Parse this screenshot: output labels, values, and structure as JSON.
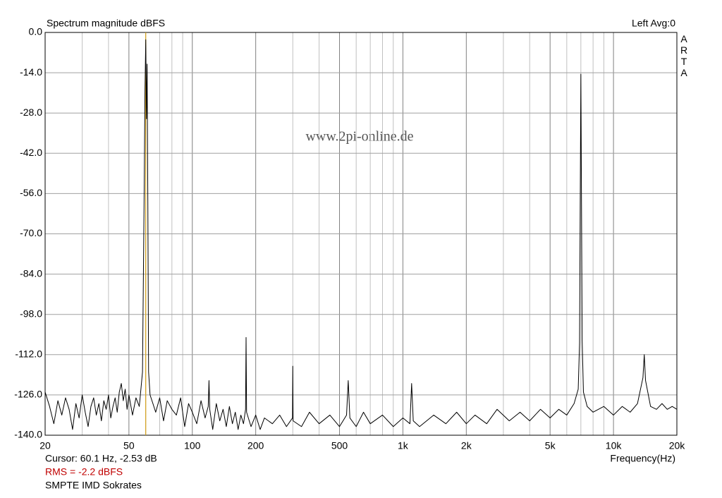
{
  "chart_data": {
    "type": "line",
    "title": "Spectrum magnitude dBFS",
    "channel_label": "Left  Avg:0",
    "brand": "ARTA",
    "watermark": "www.2pi-online.de",
    "x_label": "Frequency(Hz)",
    "cursor": {
      "label": "Cursor:   60.1 Hz, -2.53 dB",
      "x": 60.1,
      "color": "#d4a017"
    },
    "rms_label": "RMS =   -2.2 dBFS",
    "footer": "SMPTE IMD Sokrates",
    "log_x": true,
    "grid": true,
    "xlim": [
      20,
      20000
    ],
    "ylim": [
      -140,
      0
    ],
    "xticks": [
      20,
      50,
      100,
      200,
      500,
      {
        "value": 1000,
        "label": "1k"
      },
      {
        "value": 2000,
        "label": "2k"
      },
      {
        "value": 5000,
        "label": "5k"
      },
      {
        "value": 10000,
        "label": "10k"
      },
      {
        "value": 20000,
        "label": "20k"
      }
    ],
    "xminor": [
      30,
      40,
      60,
      70,
      80,
      90,
      300,
      400,
      600,
      700,
      800,
      900,
      3000,
      4000,
      6000,
      7000,
      8000,
      9000
    ],
    "yticks": [
      {
        "value": 0,
        "label": "0.0"
      },
      {
        "value": -14,
        "label": "-14.0"
      },
      {
        "value": -28,
        "label": "-28.0"
      },
      {
        "value": -42,
        "label": "-42.0"
      },
      {
        "value": -56,
        "label": "-56.0"
      },
      {
        "value": -70,
        "label": "-70.0"
      },
      {
        "value": -84,
        "label": "-84.0"
      },
      {
        "value": -98,
        "label": "-98.0"
      },
      {
        "value": -112,
        "label": "-112.0"
      },
      {
        "value": -126,
        "label": "-126.0"
      },
      {
        "value": -140,
        "label": "-140.0"
      }
    ],
    "series": [
      {
        "color": "#000000",
        "x": [
          20,
          21,
          22,
          23,
          24,
          25,
          26,
          27,
          28,
          29,
          30,
          31,
          32,
          33,
          34,
          35,
          36,
          37,
          38,
          39,
          40,
          41,
          42,
          43,
          44,
          45,
          46,
          47,
          48,
          49,
          50,
          52,
          54,
          56,
          57,
          58,
          59,
          59.6,
          60.1,
          60.6,
          61,
          61.5,
          62,
          63,
          65,
          67,
          70,
          73,
          76,
          80,
          84,
          88,
          92,
          96,
          100,
          105,
          110,
          115,
          119,
          120,
          121,
          125,
          130,
          135,
          140,
          145,
          150,
          155,
          160,
          165,
          170,
          175,
          179,
          180,
          181,
          190,
          200,
          210,
          220,
          240,
          260,
          280,
          299,
          300,
          301,
          330,
          360,
          400,
          450,
          500,
          540,
          550,
          560,
          600,
          650,
          700,
          800,
          900,
          1000,
          1080,
          1100,
          1120,
          1200,
          1400,
          1600,
          1800,
          2000,
          2200,
          2500,
          2800,
          3200,
          3600,
          4000,
          4500,
          5000,
          5500,
          6000,
          6500,
          6800,
          6900,
          6950,
          7000,
          7050,
          7100,
          7200,
          7500,
          8000,
          9000,
          10000,
          11000,
          12000,
          13000,
          13800,
          14000,
          14200,
          15000,
          16000,
          17000,
          18000,
          19000,
          20000
        ],
        "values": [
          -125,
          -130,
          -136,
          -128,
          -133,
          -127,
          -131,
          -138,
          -129,
          -134,
          -126,
          -132,
          -137,
          -130,
          -127,
          -133,
          -129,
          -135,
          -128,
          -131,
          -126,
          -134,
          -130,
          -127,
          -132,
          -125,
          -122,
          -128,
          -124,
          -131,
          -126,
          -133,
          -127,
          -130,
          -124,
          -118,
          -60,
          -20,
          -2.5,
          -30,
          -11,
          -60,
          -118,
          -126,
          -129,
          -132,
          -127,
          -135,
          -128,
          -131,
          -133,
          -127,
          -137,
          -129,
          -132,
          -136,
          -128,
          -134,
          -130,
          -121,
          -131,
          -138,
          -129,
          -135,
          -131,
          -137,
          -130,
          -136,
          -132,
          -138,
          -133,
          -136,
          -131,
          -106,
          -132,
          -137,
          -133,
          -138,
          -134,
          -136,
          -133,
          -137,
          -134,
          -116,
          -135,
          -137,
          -132,
          -136,
          -133,
          -137,
          -133,
          -121,
          -134,
          -137,
          -132,
          -136,
          -133,
          -137,
          -134,
          -136,
          -122,
          -135,
          -137,
          -133,
          -136,
          -132,
          -136,
          -133,
          -136,
          -131,
          -135,
          -132,
          -135,
          -131,
          -134,
          -131,
          -133,
          -129,
          -124,
          -108,
          -60,
          -14.5,
          -60,
          -107,
          -125,
          -130,
          -132,
          -130,
          -133,
          -130,
          -132,
          -129,
          -120,
          -112,
          -121,
          -130,
          -131,
          -129,
          -131,
          -130,
          -131
        ]
      }
    ]
  }
}
